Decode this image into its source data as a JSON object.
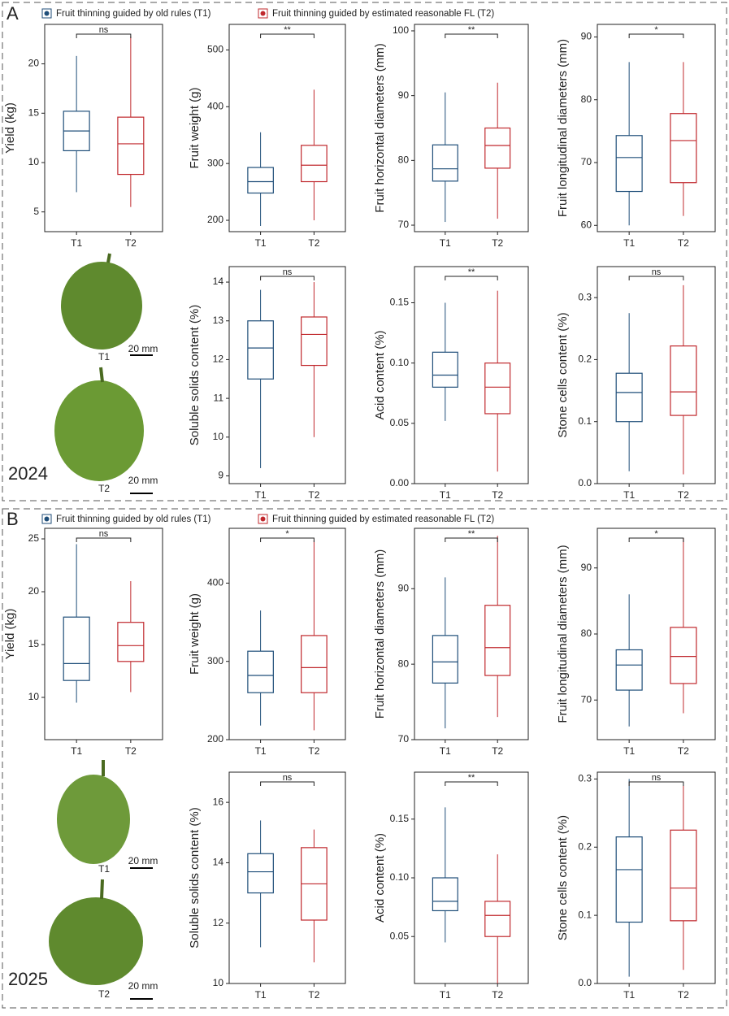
{
  "panels": [
    {
      "label": "A",
      "year": "2024",
      "legend": [
        "Fruit thinning guided by old rules (T1)",
        "Fruit thinning guided by estimated reasonable FL (T2)"
      ],
      "images": [
        {
          "label": "T1",
          "scale": "20 mm"
        },
        {
          "label": "T2",
          "scale": "20 mm"
        }
      ]
    },
    {
      "label": "B",
      "year": "2025",
      "legend": [
        "Fruit thinning guided by old rules (T1)",
        "Fruit thinning guided by estimated reasonable FL (T2)"
      ],
      "images": [
        {
          "label": "T1",
          "scale": "20 mm"
        },
        {
          "label": "T2",
          "scale": "20 mm"
        }
      ]
    }
  ],
  "chart_data": [
    {
      "type": "box",
      "ylabel": "Yield (kg)",
      "categories": [
        "T1",
        "T2"
      ],
      "colors": [
        "#1f4e79",
        "#c0282d"
      ],
      "significance": "ns",
      "ylim": [
        3,
        24
      ],
      "yticks": [
        5,
        10,
        15,
        20
      ],
      "boxes": [
        {
          "min": 7,
          "q1": 11.2,
          "median": 13.2,
          "q3": 15.2,
          "max": 20.8
        },
        {
          "min": 5.5,
          "q1": 8.8,
          "median": 11.9,
          "q3": 14.6,
          "max": 22.8
        }
      ]
    },
    {
      "type": "box",
      "ylabel": "Fruit weight (g)",
      "categories": [
        "T1",
        "T2"
      ],
      "colors": [
        "#1f4e79",
        "#c0282d"
      ],
      "significance": "**",
      "ylim": [
        180,
        545
      ],
      "yticks": [
        200,
        300,
        400,
        500
      ],
      "boxes": [
        {
          "min": 190,
          "q1": 248,
          "median": 268,
          "q3": 293,
          "max": 355
        },
        {
          "min": 200,
          "q1": 268,
          "median": 297,
          "q3": 332,
          "max": 430
        }
      ]
    },
    {
      "type": "box",
      "ylabel": "Fruit horizontal diameters (mm)",
      "categories": [
        "T1",
        "T2"
      ],
      "colors": [
        "#1f4e79",
        "#c0282d"
      ],
      "significance": "**",
      "ylim": [
        69,
        101
      ],
      "yticks": [
        70,
        80,
        90,
        100
      ],
      "boxes": [
        {
          "min": 70.5,
          "q1": 76.8,
          "median": 78.7,
          "q3": 82.4,
          "max": 90.5
        },
        {
          "min": 71,
          "q1": 78.8,
          "median": 82.3,
          "q3": 85,
          "max": 92
        }
      ]
    },
    {
      "type": "box",
      "ylabel": "Fruit longitudinal diameters  (mm)",
      "categories": [
        "T1",
        "T2"
      ],
      "colors": [
        "#1f4e79",
        "#c0282d"
      ],
      "significance": "*",
      "ylim": [
        59,
        92
      ],
      "yticks": [
        60,
        70,
        80,
        90
      ],
      "boxes": [
        {
          "min": 60,
          "q1": 65.4,
          "median": 70.8,
          "q3": 74.3,
          "max": 86
        },
        {
          "min": 61.5,
          "q1": 66.8,
          "median": 73.5,
          "q3": 77.8,
          "max": 86
        }
      ]
    },
    {
      "type": "box",
      "ylabel": "Soluble solids content (%)",
      "categories": [
        "T1",
        "T2"
      ],
      "colors": [
        "#1f4e79",
        "#c0282d"
      ],
      "significance": "ns",
      "ylim": [
        8.8,
        14.4
      ],
      "yticks": [
        9,
        10,
        11,
        12,
        13,
        14
      ],
      "boxes": [
        {
          "min": 9.2,
          "q1": 11.5,
          "median": 12.3,
          "q3": 13,
          "max": 13.8
        },
        {
          "min": 10,
          "q1": 11.85,
          "median": 12.65,
          "q3": 13.1,
          "max": 14
        }
      ]
    },
    {
      "type": "box",
      "ylabel": "Acid content (%)",
      "categories": [
        "T1",
        "T2"
      ],
      "colors": [
        "#1f4e79",
        "#c0282d"
      ],
      "significance": "**",
      "ylim": [
        0,
        0.18
      ],
      "yticks": [
        {
          "value": 0,
          "label": "0.00"
        },
        0.05,
        {
          "value": 0.1,
          "label": "0.10"
        },
        0.15
      ],
      "boxes": [
        {
          "min": 0.052,
          "q1": 0.08,
          "median": 0.09,
          "q3": 0.109,
          "max": 0.15
        },
        {
          "min": 0.01,
          "q1": 0.058,
          "median": 0.08,
          "q3": 0.1,
          "max": 0.16
        }
      ]
    },
    {
      "type": "box",
      "ylabel": "Stone cells content (%)",
      "categories": [
        "T1",
        "T2"
      ],
      "colors": [
        "#1f4e79",
        "#c0282d"
      ],
      "significance": "ns",
      "ylim": [
        0,
        0.35
      ],
      "yticks": [
        {
          "value": 0,
          "label": "0.0"
        },
        0.1,
        0.2,
        0.3
      ],
      "boxes": [
        {
          "min": 0.02,
          "q1": 0.1,
          "median": 0.147,
          "q3": 0.178,
          "max": 0.275
        },
        {
          "min": 0.015,
          "q1": 0.11,
          "median": 0.148,
          "q3": 0.222,
          "max": 0.32
        }
      ]
    },
    {
      "type": "box",
      "ylabel": "Yield (kg)",
      "categories": [
        "T1",
        "T2"
      ],
      "colors": [
        "#1f4e79",
        "#c0282d"
      ],
      "significance": "ns",
      "ylim": [
        6,
        26
      ],
      "yticks": [
        10,
        15,
        20,
        25
      ],
      "boxes": [
        {
          "min": 9.5,
          "q1": 11.6,
          "median": 13.2,
          "q3": 17.6,
          "max": 24.5
        },
        {
          "min": 10.5,
          "q1": 13.4,
          "median": 14.9,
          "q3": 17.1,
          "max": 21
        }
      ]
    },
    {
      "type": "box",
      "ylabel": "Fruit weight (g)",
      "categories": [
        "T1",
        "T2"
      ],
      "colors": [
        "#1f4e79",
        "#c0282d"
      ],
      "significance": "*",
      "ylim": [
        200,
        470
      ],
      "yticks": [
        200,
        300,
        400
      ],
      "boxes": [
        {
          "min": 218,
          "q1": 260,
          "median": 282,
          "q3": 313,
          "max": 365
        },
        {
          "min": 212,
          "q1": 260,
          "median": 292,
          "q3": 333,
          "max": 455
        }
      ]
    },
    {
      "type": "box",
      "ylabel": "Fruit horizontal diameters (mm)",
      "categories": [
        "T1",
        "T2"
      ],
      "colors": [
        "#1f4e79",
        "#c0282d"
      ],
      "significance": "**",
      "ylim": [
        70,
        98
      ],
      "yticks": [
        70,
        80,
        90
      ],
      "boxes": [
        {
          "min": 71.5,
          "q1": 77.5,
          "median": 80.3,
          "q3": 83.8,
          "max": 91.5
        },
        {
          "min": 73,
          "q1": 78.5,
          "median": 82.2,
          "q3": 87.8,
          "max": 97
        }
      ]
    },
    {
      "type": "box",
      "ylabel": "Fruit longitudinal diameters  (mm)",
      "categories": [
        "T1",
        "T2"
      ],
      "colors": [
        "#1f4e79",
        "#c0282d"
      ],
      "significance": "*",
      "ylim": [
        64,
        96
      ],
      "yticks": [
        70,
        80,
        90
      ],
      "boxes": [
        {
          "min": 66,
          "q1": 71.5,
          "median": 75.3,
          "q3": 77.6,
          "max": 86
        },
        {
          "min": 68,
          "q1": 72.5,
          "median": 76.6,
          "q3": 81,
          "max": 94.5
        }
      ]
    },
    {
      "type": "box",
      "ylabel": "Soluble solids content (%)",
      "categories": [
        "T1",
        "T2"
      ],
      "colors": [
        "#1f4e79",
        "#c0282d"
      ],
      "significance": "ns",
      "ylim": [
        10,
        17
      ],
      "yticks": [
        10,
        12,
        14,
        16
      ],
      "boxes": [
        {
          "min": 11.2,
          "q1": 13,
          "median": 13.7,
          "q3": 14.3,
          "max": 15.4
        },
        {
          "min": 10.7,
          "q1": 12.1,
          "median": 13.3,
          "q3": 14.5,
          "max": 15.1
        }
      ]
    },
    {
      "type": "box",
      "ylabel": "Acid content (%)",
      "categories": [
        "T1",
        "T2"
      ],
      "colors": [
        "#1f4e79",
        "#c0282d"
      ],
      "significance": "**",
      "ylim": [
        0.01,
        0.19
      ],
      "yticks": [
        0.05,
        {
          "value": 0.1,
          "label": "0.10"
        },
        0.15
      ],
      "boxes": [
        {
          "min": 0.045,
          "q1": 0.072,
          "median": 0.08,
          "q3": 0.1,
          "max": 0.16
        },
        {
          "min": 0.01,
          "q1": 0.05,
          "median": 0.068,
          "q3": 0.08,
          "max": 0.12
        }
      ]
    },
    {
      "type": "box",
      "ylabel": "Stone cells content (%)",
      "categories": [
        "T1",
        "T2"
      ],
      "colors": [
        "#1f4e79",
        "#c0282d"
      ],
      "significance": "ns",
      "ylim": [
        0,
        0.31
      ],
      "yticks": [
        {
          "value": 0,
          "label": "0.0"
        },
        0.1,
        0.2,
        0.3
      ],
      "boxes": [
        {
          "min": 0.01,
          "q1": 0.09,
          "median": 0.167,
          "q3": 0.215,
          "max": 0.3
        },
        {
          "min": 0.02,
          "q1": 0.092,
          "median": 0.14,
          "q3": 0.225,
          "max": 0.29
        }
      ]
    }
  ]
}
